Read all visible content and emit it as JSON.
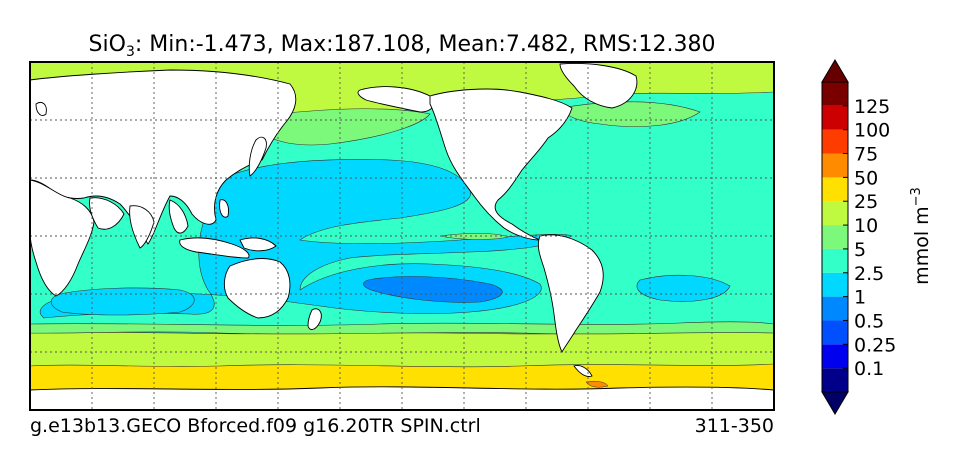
{
  "chart_data": {
    "type": "heatmap",
    "variable_symbol": "SiO",
    "variable_subscript": "3",
    "title_stats": ": Min:-1.473, Max:187.108, Mean:7.482, RMS:12.380",
    "stats": {
      "min": -1.473,
      "max": 187.108,
      "mean": 7.482,
      "rms": 12.38
    },
    "case_label": "g.e13b13.GECO Bforced.f09 g16.20TR SPIN.ctrl",
    "year_range": "311-350",
    "colorbar": {
      "unit_base": "mmol m",
      "unit_exponent": "−3",
      "extend": "both",
      "under_color": "#000066",
      "over_color": "#660000",
      "levels": [
        "0.1",
        "0.25",
        "0.5",
        "1",
        "2.5",
        "5",
        "10",
        "25",
        "50",
        "75",
        "100",
        "125"
      ],
      "colors": [
        "#00008b",
        "#0000ee",
        "#0050ff",
        "#0088ff",
        "#00d8ff",
        "#33ffc8",
        "#7cf87a",
        "#c0fa40",
        "#ffe000",
        "#ff8c00",
        "#ff3c00",
        "#cc0000",
        "#7a0000"
      ]
    },
    "map": {
      "projection": "cylindrical",
      "grid": true,
      "land_color": "#ffffff"
    }
  }
}
